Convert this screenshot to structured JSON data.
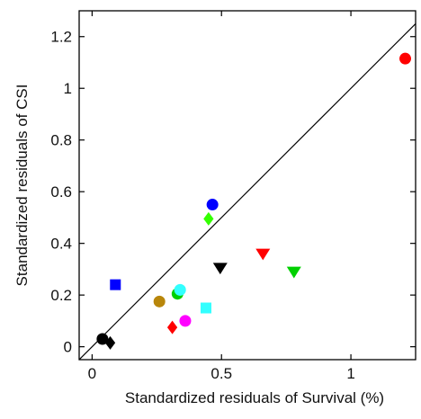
{
  "chart_data": {
    "type": "scatter",
    "title": "",
    "xlabel": "Standardized residuals of Survival (%)",
    "ylabel": "Standardized residuals of CSI",
    "xlim": [
      -0.05,
      1.25
    ],
    "ylim": [
      -0.05,
      1.3
    ],
    "xticks": [
      0,
      0.5,
      1
    ],
    "xtick_labels": [
      "0",
      "0.5",
      "1"
    ],
    "yticks": [
      0,
      0.2,
      0.4,
      0.6,
      0.8,
      1,
      1.2
    ],
    "ytick_labels": [
      "0",
      "0.2",
      "0.4",
      "0.6",
      "0.8",
      "1",
      "1.2"
    ],
    "grid": false,
    "legend": "none",
    "reference_line": {
      "type": "identity",
      "x": [
        -0.05,
        1.25
      ],
      "y": [
        -0.05,
        1.25
      ]
    },
    "points": [
      {
        "x": 0.04,
        "y": 0.03,
        "marker": "circle",
        "color": "#000000"
      },
      {
        "x": 0.07,
        "y": 0.015,
        "marker": "diamond",
        "color": "#000000"
      },
      {
        "x": 0.09,
        "y": 0.24,
        "marker": "square",
        "color": "#0000ff"
      },
      {
        "x": 0.26,
        "y": 0.175,
        "marker": "circle",
        "color": "#b8860b"
      },
      {
        "x": 0.31,
        "y": 0.075,
        "marker": "diamond",
        "color": "#ff0000"
      },
      {
        "x": 0.33,
        "y": 0.205,
        "marker": "circle",
        "color": "#00d000"
      },
      {
        "x": 0.34,
        "y": 0.22,
        "marker": "circle",
        "color": "#33ffff"
      },
      {
        "x": 0.36,
        "y": 0.1,
        "marker": "circle",
        "color": "#ff00ff"
      },
      {
        "x": 0.44,
        "y": 0.15,
        "marker": "square",
        "color": "#33ffff"
      },
      {
        "x": 0.45,
        "y": 0.495,
        "marker": "diamond",
        "color": "#33ff00"
      },
      {
        "x": 0.465,
        "y": 0.55,
        "marker": "circle",
        "color": "#0000ff"
      },
      {
        "x": 0.495,
        "y": 0.305,
        "marker": "triangle-down",
        "color": "#000000"
      },
      {
        "x": 0.66,
        "y": 0.36,
        "marker": "triangle-down",
        "color": "#ff0000"
      },
      {
        "x": 0.78,
        "y": 0.29,
        "marker": "triangle-down",
        "color": "#00d000"
      },
      {
        "x": 1.21,
        "y": 1.115,
        "marker": "circle",
        "color": "#ff0000"
      }
    ]
  }
}
